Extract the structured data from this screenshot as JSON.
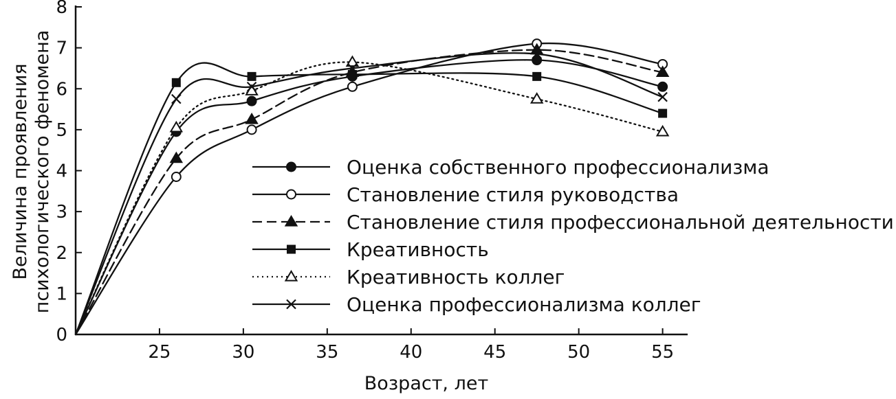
{
  "chart_data": {
    "type": "line",
    "xlabel": "Возраст, лет",
    "ylabel_lines": [
      "Величина проявления",
      "психологического феномена"
    ],
    "xlim": [
      20,
      56
    ],
    "ylim": [
      0,
      8
    ],
    "x_ticks": [
      25,
      30,
      35,
      40,
      45,
      50,
      55
    ],
    "y_ticks": [
      0,
      1,
      2,
      3,
      4,
      5,
      6,
      7,
      8
    ],
    "legend_position": "inside-center",
    "series": [
      {
        "name": "Оценка собственного профессионализма",
        "marker": "filled-circle",
        "dash": "solid",
        "color": "#111111",
        "x": [
          20,
          26,
          30.5,
          36.5,
          47.5,
          55
        ],
        "y": [
          0,
          4.95,
          5.7,
          6.3,
          6.7,
          6.05
        ]
      },
      {
        "name": "Становление стиля руководства",
        "marker": "open-circle",
        "dash": "solid",
        "color": "#111111",
        "x": [
          20,
          26,
          30.5,
          36.5,
          47.5,
          55
        ],
        "y": [
          0,
          3.85,
          5.0,
          6.05,
          7.1,
          6.6
        ]
      },
      {
        "name": "Становление стиля профессиональной деятельности",
        "marker": "filled-triangle",
        "dash": "dashed",
        "color": "#111111",
        "x": [
          20,
          26,
          30.5,
          36.5,
          47.5,
          55
        ],
        "y": [
          0,
          4.3,
          5.25,
          6.4,
          6.95,
          6.4
        ]
      },
      {
        "name": "Креативность",
        "marker": "filled-square",
        "dash": "solid",
        "color": "#111111",
        "x": [
          20,
          26,
          30.5,
          36.5,
          47.5,
          55
        ],
        "y": [
          0,
          6.15,
          6.3,
          6.35,
          6.3,
          5.4
        ]
      },
      {
        "name": "Креативность коллег",
        "marker": "open-triangle",
        "dash": "dotted",
        "color": "#111111",
        "x": [
          20,
          26,
          30.5,
          36.5,
          47.5,
          55
        ],
        "y": [
          0,
          5.05,
          5.95,
          6.65,
          5.75,
          4.95
        ]
      },
      {
        "name": "Оценка профессионализма коллег",
        "marker": "cross",
        "dash": "solid",
        "color": "#111111",
        "x": [
          20,
          26,
          30.5,
          36.5,
          47.5,
          55
        ],
        "y": [
          0,
          5.75,
          6.05,
          6.5,
          6.85,
          5.8
        ]
      }
    ]
  }
}
